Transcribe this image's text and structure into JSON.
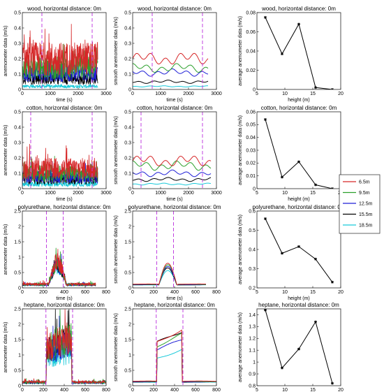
{
  "legend": [
    {
      "name": "6.5m",
      "color": "#d62728"
    },
    {
      "name": "9.5m",
      "color": "#2ca02c"
    },
    {
      "name": "12.5m",
      "color": "#1f1fd6"
    },
    {
      "name": "15.5m",
      "color": "#000000"
    },
    {
      "name": "18.5m",
      "color": "#17c9d9"
    }
  ],
  "chart_data": [
    {
      "id": "wood-raw",
      "type": "line",
      "title": "wood, horizontal distance: 0m",
      "xlabel": "time (s)",
      "ylabel": "anemometer data (m/s)",
      "xlim": [
        0,
        3000
      ],
      "ylim": [
        0,
        0.5
      ],
      "xticks": [
        0,
        1000,
        2000,
        3000
      ],
      "yticks": [
        0,
        0.1,
        0.2,
        0.3,
        0.4,
        0.5
      ],
      "markers": [
        700,
        2500
      ],
      "style": "noisy",
      "start": 0,
      "end": 2700,
      "rise": 0,
      "fall": 2700,
      "levels": [
        0.2,
        0.14,
        0.11,
        0.07,
        0.02
      ],
      "base": 0.02
    },
    {
      "id": "wood-smooth",
      "type": "line",
      "title": "wood, horizontal distance: 0m",
      "xlabel": "time (s)",
      "ylabel": "smooth anemometer data (m/s)",
      "xlim": [
        0,
        3000
      ],
      "ylim": [
        0,
        0.5
      ],
      "xticks": [
        0,
        1000,
        2000,
        3000
      ],
      "yticks": [
        0,
        0.1,
        0.2,
        0.3,
        0.4,
        0.5
      ],
      "markers": [
        700,
        2500
      ],
      "style": "smooth",
      "start": 0,
      "end": 2700,
      "rise": 0,
      "fall": 2700,
      "levels": [
        0.2,
        0.14,
        0.11,
        0.05,
        0.02
      ],
      "base": 0.02
    },
    {
      "id": "wood-avg",
      "type": "line",
      "title": "wood, horizontal distance: 0m",
      "xlabel": "height (m)",
      "ylabel": "average anemometer data (m/s)",
      "xlim": [
        5,
        20
      ],
      "ylim": [
        0,
        0.08
      ],
      "xticks": [
        5,
        10,
        15,
        20
      ],
      "yticks": [
        0,
        0.02,
        0.04,
        0.06,
        0.08
      ],
      "x": [
        6.5,
        9.5,
        12.5,
        15.5,
        18.5
      ],
      "y": [
        0.075,
        0.037,
        0.068,
        0.002,
        0.0
      ]
    },
    {
      "id": "cotton-raw",
      "type": "line",
      "title": "cotton, horizontal distance: 0m",
      "xlabel": "time (s)",
      "ylabel": "anemometer data (m/s)",
      "xlim": [
        0,
        3000
      ],
      "ylim": [
        0,
        0.5
      ],
      "xticks": [
        0,
        1000,
        2000,
        3000
      ],
      "yticks": [
        0,
        0.1,
        0.2,
        0.3,
        0.4,
        0.5
      ],
      "markers": [
        300,
        2500
      ],
      "style": "noisy",
      "start": 0,
      "end": 2700,
      "rise": 0,
      "fall": 2700,
      "levels": [
        0.13,
        0.1,
        0.08,
        0.06,
        0.03
      ],
      "base": 0.02
    },
    {
      "id": "cotton-smooth",
      "type": "line",
      "title": "cotton, horizontal distance: 0m",
      "xlabel": "time (s)",
      "ylabel": "smooth anemometer data (m/s)",
      "xlim": [
        0,
        3000
      ],
      "ylim": [
        0,
        0.5
      ],
      "xticks": [
        0,
        1000,
        2000,
        3000
      ],
      "yticks": [
        0,
        0.1,
        0.2,
        0.3,
        0.4,
        0.5
      ],
      "markers": [
        300,
        2500
      ],
      "style": "smooth",
      "start": 0,
      "end": 2800,
      "rise": 0,
      "fall": 2800,
      "levels": [
        0.18,
        0.15,
        0.1,
        0.06,
        0.03
      ],
      "base": 0.02
    },
    {
      "id": "cotton-avg",
      "type": "line",
      "title": "cotton, horizontal distance: 0m",
      "xlabel": "height (m)",
      "ylabel": "average anemometer data (m/s)",
      "xlim": [
        5,
        20
      ],
      "ylim": [
        0,
        0.06
      ],
      "xticks": [
        5,
        10,
        15,
        20
      ],
      "yticks": [
        0,
        0.01,
        0.02,
        0.03,
        0.04,
        0.05,
        0.06
      ],
      "x": [
        6.5,
        9.5,
        12.5,
        15.5,
        18.5
      ],
      "y": [
        0.054,
        0.009,
        0.021,
        0.003,
        0.0
      ]
    },
    {
      "id": "poly-raw",
      "type": "line",
      "title": "polyurethane, horizontal distance: 0m",
      "xlabel": "time (s)",
      "ylabel": "anemometer data (m/s)",
      "xlim": [
        0,
        800
      ],
      "ylim": [
        0,
        2.5
      ],
      "xticks": [
        0,
        200,
        400,
        600,
        800
      ],
      "yticks": [
        0,
        0.5,
        1,
        1.5,
        2,
        2.5
      ],
      "markers": [
        230,
        390
      ],
      "style": "noisy",
      "start": 0,
      "end": 700,
      "rise": 250,
      "fall": 430,
      "levels": [
        0.85,
        0.78,
        0.72,
        0.7,
        0.65
      ],
      "base": 0.1
    },
    {
      "id": "poly-smooth",
      "type": "line",
      "title": "polyurethane, horizontal distance: 0m",
      "xlabel": "time (s)",
      "ylabel": "smooth anemometer data (m/s)",
      "xlim": [
        0,
        800
      ],
      "ylim": [
        0,
        2.5
      ],
      "xticks": [
        0,
        200,
        400,
        600,
        800
      ],
      "yticks": [
        0,
        0.5,
        1,
        1.5,
        2,
        2.5
      ],
      "markers": [
        230,
        390
      ],
      "style": "smooth",
      "start": 0,
      "end": 700,
      "rise": 250,
      "fall": 430,
      "levels": [
        0.8,
        0.75,
        0.68,
        0.66,
        0.6
      ],
      "base": 0.1
    },
    {
      "id": "poly-avg",
      "type": "line",
      "title": "polyurethane, horizontal distance: 0m",
      "xlabel": "height (m)",
      "ylabel": "average anemometer data (m/s)",
      "xlim": [
        5,
        20
      ],
      "ylim": [
        0.2,
        0.6
      ],
      "xticks": [
        5,
        10,
        15,
        20
      ],
      "yticks": [
        0.2,
        0.3,
        0.4,
        0.5,
        0.6
      ],
      "x": [
        6.5,
        9.5,
        12.5,
        15.5,
        18.5
      ],
      "y": [
        0.56,
        0.38,
        0.415,
        0.35,
        0.23
      ]
    },
    {
      "id": "hep-raw",
      "type": "line",
      "title": "heptane, horizontal distance: 0m",
      "xlabel": "time (s)",
      "ylabel": "anemometer data (m/s)",
      "xlim": [
        0,
        800
      ],
      "ylim": [
        0,
        2.5
      ],
      "xticks": [
        0,
        200,
        400,
        600,
        800
      ],
      "yticks": [
        0,
        0.5,
        1,
        1.5,
        2,
        2.5
      ],
      "markers": [
        225,
        480
      ],
      "style": "noisy",
      "start": 0,
      "end": 800,
      "rise": 230,
      "fall": 470,
      "levels": [
        1.6,
        1.55,
        1.4,
        1.5,
        1.1
      ],
      "base": 0.1
    },
    {
      "id": "hep-smooth",
      "type": "line",
      "title": "heptane, horizontal distance: 0m",
      "xlabel": "time (s)",
      "ylabel": "smooth anemometer data (m/s)",
      "xlim": [
        0,
        800
      ],
      "ylim": [
        0,
        2.5
      ],
      "xticks": [
        0,
        200,
        400,
        600,
        800
      ],
      "yticks": [
        0,
        0.5,
        1,
        1.5,
        2,
        2.5
      ],
      "markers": [
        225,
        480
      ],
      "style": "smooth",
      "start": 0,
      "end": 800,
      "rise": 230,
      "fall": 470,
      "levels": [
        1.8,
        1.65,
        1.5,
        1.85,
        1.2
      ],
      "base": 0.12
    },
    {
      "id": "hep-avg",
      "type": "line",
      "title": "heptane, horizontal distance: 0m",
      "xlabel": "height (m)",
      "ylabel": "average anemometer data (m/s)",
      "xlim": [
        5,
        20
      ],
      "ylim": [
        0.8,
        1.45
      ],
      "xticks": [
        5,
        10,
        15,
        20
      ],
      "yticks": [
        0.8,
        0.9,
        1,
        1.1,
        1.2,
        1.3,
        1.4
      ],
      "x": [
        6.5,
        9.5,
        12.5,
        15.5,
        18.5
      ],
      "y": [
        1.44,
        0.95,
        1.11,
        1.34,
        0.82
      ]
    }
  ]
}
